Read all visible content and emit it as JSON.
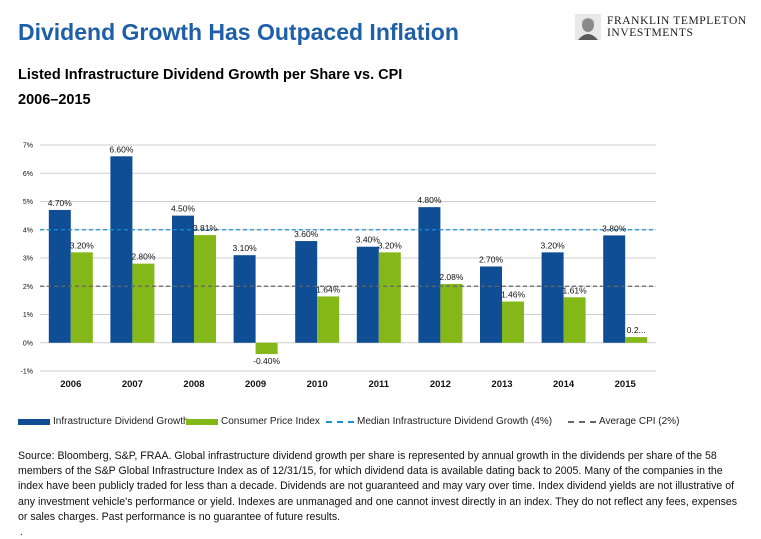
{
  "header": {
    "title": "Dividend Growth Has Outpaced Inflation",
    "subtitle": "Listed Infrastructure Dividend Growth per Share vs. CPI",
    "period": "2006–2015",
    "logo_line1": "FRANKLIN TEMPLETON",
    "logo_line2": "INVESTMENTS"
  },
  "chart_data": {
    "type": "bar",
    "categories": [
      "2006",
      "2007",
      "2008",
      "2009",
      "2010",
      "2011",
      "2012",
      "2013",
      "2014",
      "2015"
    ],
    "series": [
      {
        "name": "Infrastructure Dividend Growth",
        "color": "#0f4e94",
        "values": [
          4.7,
          6.6,
          4.5,
          3.1,
          3.6,
          3.4,
          4.8,
          2.7,
          3.2,
          3.8
        ],
        "labels": [
          "4.70%",
          "6.60%",
          "4.50%",
          "3.10%",
          "3.60%",
          "3.40%",
          "4.80%",
          "2.70%",
          "3.20%",
          "3.80%"
        ]
      },
      {
        "name": "Consumer Price Index",
        "color": "#84b818",
        "values": [
          3.2,
          2.8,
          3.81,
          -0.4,
          1.64,
          3.2,
          2.08,
          1.46,
          1.61,
          0.2
        ],
        "labels": [
          "3.20%",
          "2.80%",
          "3.81%",
          "-0.40%",
          "1.64%",
          "3.20%",
          "2.08%",
          "1.46%",
          "1.61%",
          "0.2..."
        ]
      }
    ],
    "reference_lines": [
      {
        "name": "Median Infrastructure Dividend Growth (4%)",
        "value": 4,
        "color": "#1a8fd6",
        "style": "dashed"
      },
      {
        "name": "Average CPI (2%)",
        "value": 2,
        "color": "#666666",
        "style": "dashed"
      }
    ],
    "ylim": [
      -1,
      7
    ],
    "yticks": [
      "-1%",
      "0%",
      "1%",
      "2%",
      "3%",
      "4%",
      "5%",
      "6%",
      "7%"
    ],
    "grid": true,
    "legend_position": "bottom",
    "title": "Listed Infrastructure Dividend Growth per Share vs. CPI",
    "xlabel": "",
    "ylabel": ""
  },
  "footer": {
    "source": "Source: Bloomberg, S&P, FRAA. Global infrastructure dividend growth per share is represented by annual growth in the dividends per share of the 58 members of the S&P Global Infrastructure Index as of 12/31/15, for which dividend data is available dating back to 2005. Many of the companies in the index have been publicly traded for less than a decade. Dividends are not guaranteed and may vary over time. Index dividend yields are not illustrative of any investment vehicle's performance or yield. Indexes are unmanaged and one cannot invest directly in an index. They do not reflect any fees, expenses or sales charges. Past performance is no guarantee of future results.",
    "dot": "."
  }
}
